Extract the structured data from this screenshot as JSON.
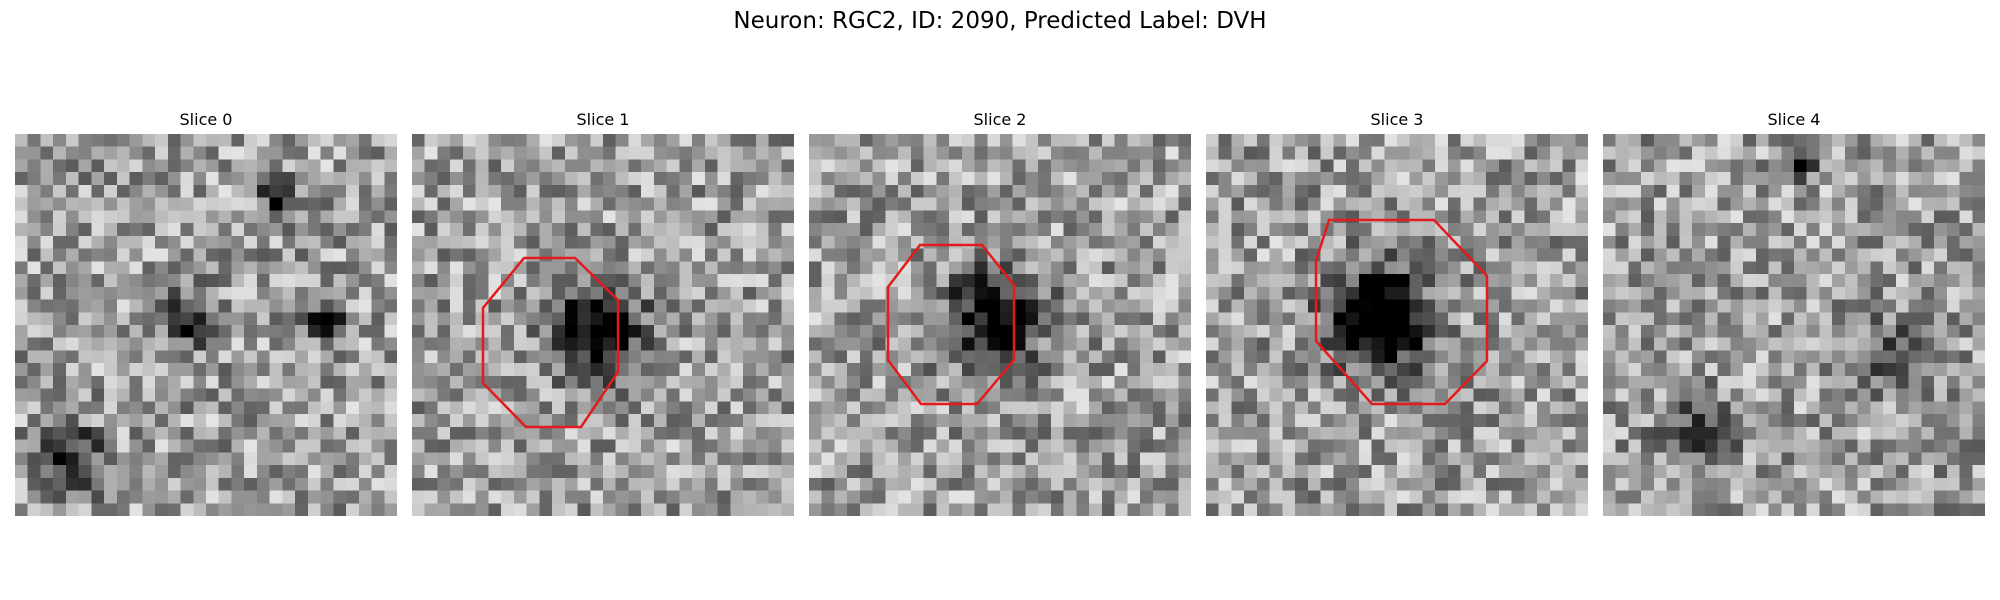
{
  "figure": {
    "title": "Neuron: RGC2, ID: 2090, Predicted Label: DVH"
  },
  "panels": [
    {
      "title": "Slice 0",
      "roi": false,
      "dark_blobs": [
        [
          13,
          14,
          2.0,
          0.55
        ],
        [
          24,
          14,
          1.4,
          0.75
        ],
        [
          20,
          4,
          1.5,
          0.55
        ],
        [
          4,
          25,
          2.5,
          0.5
        ]
      ]
    },
    {
      "title": "Slice 1",
      "roi": true,
      "dark_blobs": [
        [
          14,
          15,
          3.5,
          0.75
        ]
      ]
    },
    {
      "title": "Slice 2",
      "roi": true,
      "dark_blobs": [
        [
          14,
          14,
          3.8,
          0.65
        ]
      ]
    },
    {
      "title": "Slice 3",
      "roi": true,
      "dark_blobs": [
        [
          13,
          14,
          3.8,
          0.9
        ]
      ]
    },
    {
      "title": "Slice 4",
      "roi": false,
      "dark_blobs": [
        [
          15,
          2,
          1.0,
          0.8
        ],
        [
          22,
          17,
          2.5,
          0.4
        ],
        [
          7,
          23,
          3,
          0.3
        ]
      ]
    }
  ],
  "colors": {
    "roi_outline": "#e41a1c",
    "colormap": "gray"
  }
}
